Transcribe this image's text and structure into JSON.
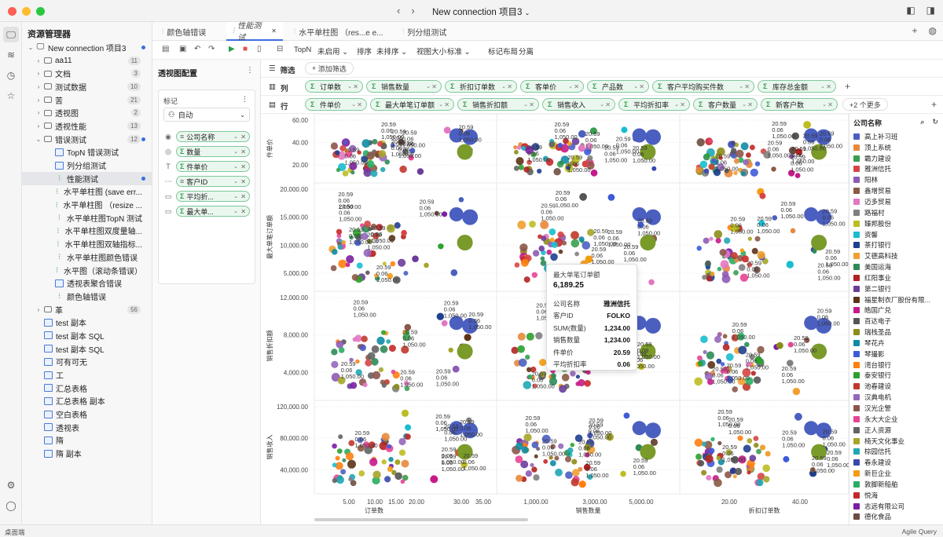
{
  "window": {
    "title": "New connection 项目3"
  },
  "explorer": {
    "title": "资源管理器",
    "project": "New connection 项目3",
    "items": [
      {
        "label": "aa11",
        "type": "folder",
        "depth": 1,
        "count": "11",
        "chev": "›"
      },
      {
        "label": "文档",
        "type": "folder",
        "depth": 1,
        "count": "3",
        "chev": "›"
      },
      {
        "label": "测试数据",
        "type": "folder",
        "depth": 1,
        "count": "10",
        "chev": "›"
      },
      {
        "label": "苦",
        "type": "folder",
        "depth": 1,
        "count": "21",
        "chev": "›"
      },
      {
        "label": "透视图",
        "type": "folder",
        "depth": 1,
        "count": "2",
        "chev": "›"
      },
      {
        "label": "透视性能",
        "type": "folder",
        "depth": 1,
        "count": "13",
        "chev": "›"
      },
      {
        "label": "错误测试",
        "type": "folder",
        "depth": 1,
        "count": "12",
        "chev": "⌄",
        "dot": true
      },
      {
        "label": "TopN 错误测试",
        "type": "pivot",
        "depth": 2
      },
      {
        "label": "列分组测试",
        "type": "pivot",
        "depth": 2
      },
      {
        "label": "性能测试",
        "type": "chart",
        "depth": 2,
        "selected": true,
        "dot": true
      },
      {
        "label": "水平单柱图 (save err...",
        "type": "chart",
        "depth": 2
      },
      {
        "label": "水平单柱图 （resize ...",
        "type": "chart",
        "depth": 2
      },
      {
        "label": "水平单柱图TopN 测试",
        "type": "chart",
        "depth": 2
      },
      {
        "label": "水平单柱图双度量轴...",
        "type": "chart",
        "depth": 2
      },
      {
        "label": "水平单柱图双轴指标...",
        "type": "chart",
        "depth": 2
      },
      {
        "label": "水平单柱图颜色错误",
        "type": "chart",
        "depth": 2
      },
      {
        "label": "水平图（滚动条错误）",
        "type": "chart",
        "depth": 2
      },
      {
        "label": "透视表聚合错误",
        "type": "pivot",
        "depth": 2
      },
      {
        "label": "颜色轴错误",
        "type": "chart",
        "depth": 2
      },
      {
        "label": "革",
        "type": "folder",
        "depth": 1,
        "count": "56",
        "chev": "›"
      },
      {
        "label": "test 副本",
        "type": "doc",
        "depth": 1
      },
      {
        "label": "test 副本 SQL",
        "type": "doc",
        "depth": 1
      },
      {
        "label": "test 副本 SQL",
        "type": "doc",
        "depth": 1
      },
      {
        "label": "可有可无",
        "type": "pivot",
        "depth": 1
      },
      {
        "label": "工",
        "type": "pivot",
        "depth": 1
      },
      {
        "label": "汇总表格",
        "type": "doc",
        "depth": 1
      },
      {
        "label": "汇总表格 副本",
        "type": "doc",
        "depth": 1
      },
      {
        "label": "空白表格",
        "type": "doc",
        "depth": 1
      },
      {
        "label": "透视表",
        "type": "doc",
        "depth": 1
      },
      {
        "label": "隋",
        "type": "doc",
        "depth": 1
      },
      {
        "label": "隋 副本",
        "type": "doc",
        "depth": 1
      }
    ]
  },
  "tabs": [
    {
      "label": "颜色轴错误",
      "x": 0
    },
    {
      "label": "性能测试",
      "x": 1,
      "active": true
    },
    {
      "label": "水平单柱图 （res...e e...",
      "x": 2
    },
    {
      "label": "列分组测试",
      "x": 3
    }
  ],
  "toolbar": {
    "topn_label": "TopN",
    "topn_value": "未启用",
    "sort_label": "排序",
    "sort_value": "未排序",
    "viewsize_label": "视图大小",
    "viewsize_value": "标准",
    "marklayout_label": "标记布局",
    "marklayout_value": "分离"
  },
  "pivot_panel": {
    "title": "透视图配置",
    "marks_label": "标记",
    "marks_type": "自动",
    "encodings": [
      {
        "icon": "color-icon",
        "label": "公司名称",
        "sigma": false
      },
      {
        "icon": "size-icon",
        "label": "数量",
        "sigma": true
      },
      {
        "icon": "label-icon",
        "label": "件单价",
        "sigma": true
      },
      {
        "icon": "detail-icon",
        "label": "客户ID",
        "sigma": false
      },
      {
        "icon": "tooltip-icon",
        "label": "平均折...",
        "sigma": true
      },
      {
        "icon": "tooltip-icon",
        "label": "最大单...",
        "sigma": true
      }
    ]
  },
  "filters": {
    "label": "筛选",
    "add_button": "添加筛选"
  },
  "columns_shelf": {
    "label": "列",
    "pills": [
      "订单数",
      "销售数量",
      "折扣订单数",
      "客单价",
      "产品数",
      "客户平均购买件数",
      "库存总金额"
    ]
  },
  "rows_shelf": {
    "label": "行",
    "pills": [
      "件单价",
      "最大单笔订单额",
      "销售折扣额",
      "销售收入",
      "平均折扣率",
      "客户数量",
      "新客户数"
    ],
    "more_button": "+2 个更多"
  },
  "chart_data": {
    "type": "scatter",
    "columns": [
      "订单数",
      "销售数量",
      "折扣订单数"
    ],
    "rows": [
      {
        "name": "件单价",
        "ticks": [
          "60.00",
          "40.00",
          "20.00"
        ]
      },
      {
        "name": "最大单笔订单额",
        "ticks": [
          "20,000.00",
          "15,000.00",
          "10,000.00",
          "5,000.00"
        ]
      },
      {
        "name": "销售折扣额",
        "ticks": [
          "12,000.00",
          "8,000.00",
          "4,000.00"
        ]
      },
      {
        "name": "销售收入",
        "ticks": [
          "120,000.00",
          "80,000.00",
          "40,000.00"
        ]
      }
    ],
    "x_ticks": [
      [
        "5.00",
        "10.00",
        "15.00",
        "20.00",
        "30.00",
        "35.00"
      ],
      [
        "1,000.00",
        "3,000.00",
        "5,000.00"
      ],
      [
        "20.00",
        "40.00"
      ]
    ],
    "point_labels": [
      "20.59",
      "0.06",
      "1,050.00"
    ]
  },
  "tooltip": {
    "title": "最大单笔订单额",
    "value": "6,189.25",
    "rows": [
      {
        "k": "公司名称",
        "v": "雅洲信托"
      },
      {
        "k": "客户ID",
        "v": "FOLKO"
      },
      {
        "k": "SUM(数量)",
        "v": "1,234.00"
      },
      {
        "k": "销售数量",
        "v": "1,234.00"
      },
      {
        "k": "件单价",
        "v": "20.59"
      },
      {
        "k": "平均折扣率",
        "v": "0.06"
      }
    ]
  },
  "legend": {
    "title": "公司名称",
    "items": [
      {
        "label": "高上补习班",
        "color": "#4b5fc1"
      },
      {
        "label": "顶上系统",
        "color": "#e8883a"
      },
      {
        "label": "霸力建设",
        "color": "#3a9e4f"
      },
      {
        "label": "雅洲信托",
        "color": "#d64545"
      },
      {
        "label": "阳林",
        "color": "#8e5bb5"
      },
      {
        "label": "鑫增贸易",
        "color": "#8a5a44"
      },
      {
        "label": "迈多贸易",
        "color": "#e377c2"
      },
      {
        "label": "路福村",
        "color": "#7f7f7f"
      },
      {
        "label": "臻邦股份",
        "color": "#bcbd22"
      },
      {
        "label": "资馨",
        "color": "#17becf"
      },
      {
        "label": "茶打银行",
        "color": "#1f3f8f"
      },
      {
        "label": "艾德高科技",
        "color": "#f0a030"
      },
      {
        "label": "美国运海",
        "color": "#2e8b57"
      },
      {
        "label": "红阳事业",
        "color": "#b22222"
      },
      {
        "label": "第二银行",
        "color": "#6a3d9a"
      },
      {
        "label": "福星制衣厂股份有限...",
        "color": "#5c3317"
      },
      {
        "label": "皓国广兑",
        "color": "#c51b8a"
      },
      {
        "label": "百达电子",
        "color": "#555555"
      },
      {
        "label": "瑞栈圣品",
        "color": "#8c8c1a"
      },
      {
        "label": "琴花卉",
        "color": "#0e8ca3"
      },
      {
        "label": "琴撮影",
        "color": "#3d5bd9"
      },
      {
        "label": "湾台银行",
        "color": "#ff7f0e"
      },
      {
        "label": "泰安银行",
        "color": "#2ca02c"
      },
      {
        "label": "池春建设",
        "color": "#c0392b"
      },
      {
        "label": "汉典电机",
        "color": "#9467bd"
      },
      {
        "label": "汉光企警",
        "color": "#8c564b"
      },
      {
        "label": "永大大企业",
        "color": "#e84393"
      },
      {
        "label": "正人资源",
        "color": "#636363"
      },
      {
        "label": "椅天文化事业",
        "color": "#a5a52a"
      },
      {
        "label": "棕园信托",
        "color": "#1fa7b5"
      },
      {
        "label": "春永建设",
        "color": "#3949ab"
      },
      {
        "label": "新巨企业",
        "color": "#f39c12"
      },
      {
        "label": "敦脚新船舶",
        "color": "#27ae60"
      },
      {
        "label": "悦海",
        "color": "#c62828"
      },
      {
        "label": "志远有限公司",
        "color": "#7b1fa2"
      },
      {
        "label": "德化食品",
        "color": "#6d4c41"
      }
    ]
  },
  "statusbar": {
    "left": "桌面端",
    "right": "Agile Query"
  }
}
